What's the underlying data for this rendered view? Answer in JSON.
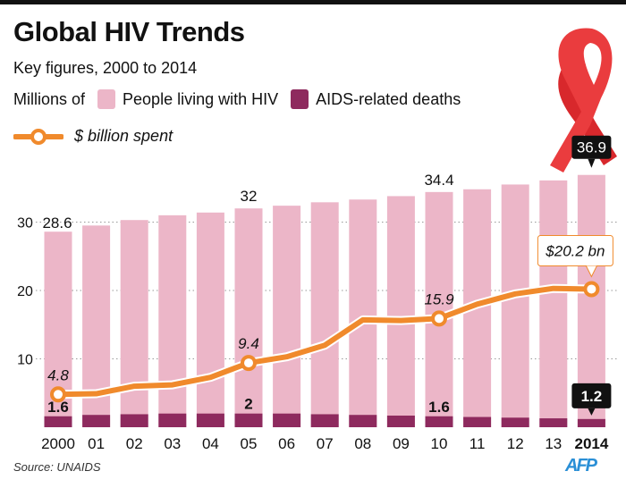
{
  "header": {
    "title": "Global HIV Trends",
    "subtitle": "Key figures, 2000 to 2014",
    "legend_prefix": "Millions of",
    "logo_text": "AFP"
  },
  "footer": {
    "source": "Source: UNAIDS",
    "logo": "AFP"
  },
  "colors": {
    "living": "#ecb6c8",
    "deaths": "#8e2a5e",
    "spent": "#f08a2c",
    "ribbon": "#e8393b"
  },
  "icons": {
    "ribbon": "red-ribbon-icon"
  },
  "chart_data": {
    "type": "bar",
    "categories": [
      "2000",
      "01",
      "02",
      "03",
      "04",
      "05",
      "06",
      "07",
      "08",
      "09",
      "10",
      "11",
      "12",
      "13",
      "2014"
    ],
    "yticks": [
      10,
      20,
      30
    ],
    "ylim": [
      0,
      38
    ],
    "grid": "dotted horizontal",
    "series": [
      {
        "name": "People living with HIV",
        "type": "bar",
        "values": [
          28.6,
          29.5,
          30.3,
          31.0,
          31.4,
          32,
          32.4,
          32.9,
          33.3,
          33.8,
          34.4,
          34.8,
          35.5,
          36.1,
          36.9
        ]
      },
      {
        "name": "AIDS-related deaths",
        "type": "bar",
        "values": [
          1.6,
          1.8,
          1.9,
          2.0,
          2.0,
          2.0,
          2.0,
          1.9,
          1.8,
          1.7,
          1.6,
          1.5,
          1.4,
          1.3,
          1.2
        ]
      },
      {
        "name": "$ billion spent",
        "type": "line",
        "values": [
          4.8,
          4.9,
          6.0,
          6.2,
          7.3,
          9.4,
          10.3,
          12.0,
          15.7,
          15.6,
          15.9,
          18.0,
          19.5,
          20.3,
          20.2
        ]
      }
    ],
    "labels": {
      "living": [
        {
          "i": 0,
          "text": "28.6"
        },
        {
          "i": 5,
          "text": "32"
        },
        {
          "i": 10,
          "text": "34.4"
        },
        {
          "i": 14,
          "text": "36.9",
          "boxed": true
        }
      ],
      "deaths": [
        {
          "i": 0,
          "text": "1.6"
        },
        {
          "i": 5,
          "text": "2"
        },
        {
          "i": 10,
          "text": "1.6"
        },
        {
          "i": 14,
          "text": "1.2",
          "boxed": true
        }
      ],
      "spent": [
        {
          "i": 0,
          "text": "4.8"
        },
        {
          "i": 5,
          "text": "9.4"
        },
        {
          "i": 10,
          "text": "15.9"
        },
        {
          "i": 14,
          "text": "$20.2 bn",
          "boxed": true
        }
      ]
    }
  }
}
